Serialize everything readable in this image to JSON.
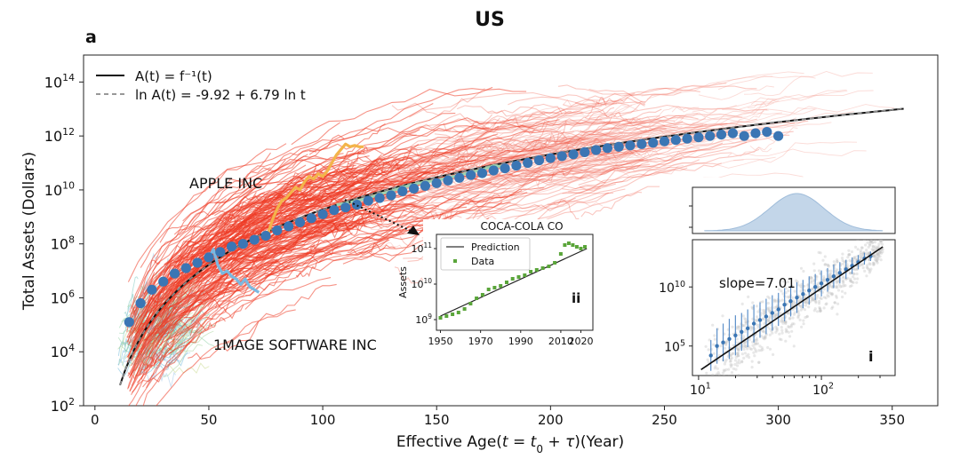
{
  "figure": {
    "title": "US",
    "panel_label": "a"
  },
  "chart_data": [
    {
      "type": "scatter",
      "xlabel": "Effective Age(t = t₀ + τ)(Year)",
      "ylabel": "Total Assets (Dollars)",
      "xlim": [
        -5,
        370
      ],
      "ylim_log10": [
        2,
        15
      ],
      "y_scale": "log",
      "x_ticks": [
        0,
        50,
        100,
        150,
        200,
        250,
        300,
        350
      ],
      "x_tick_labels": [
        "0",
        "50",
        "100",
        "150",
        "200",
        "250",
        "300",
        "350"
      ],
      "y_ticks_log10": [
        2,
        4,
        6,
        8,
        10,
        12,
        14
      ],
      "y_tick_labels": [
        "10",
        "10",
        "10",
        "10",
        "10",
        "10",
        "10"
      ],
      "y_tick_exponents": [
        "2",
        "4",
        "6",
        "8",
        "10",
        "12",
        "14"
      ],
      "legend": [
        {
          "label": "A(t)  = f⁻¹(t)",
          "style": "solid",
          "color": "#111111"
        },
        {
          "label": "ln A(t) = -9.92 + 6.79 ln t",
          "style": "dashed",
          "color": "#777777"
        }
      ],
      "legend_position": "top-left",
      "annotations": [
        {
          "text": "APPLE INC",
          "color": "#222222"
        },
        {
          "text": "1MAGE SOFTWARE INC",
          "color": "#222222"
        }
      ],
      "fit_line": {
        "formula": "ln A(t) = -9.92 + 6.79 ln t",
        "x_range": [
          11,
          355
        ]
      },
      "series": [
        {
          "kind": "binned-average",
          "color": "#3b76b4",
          "x": [
            15,
            20,
            25,
            30,
            35,
            40,
            45,
            50,
            55,
            60,
            65,
            70,
            75,
            80,
            85,
            90,
            95,
            100,
            105,
            110,
            115,
            120,
            125,
            130,
            135,
            140,
            145,
            150,
            155,
            160,
            165,
            170,
            175,
            180,
            185,
            190,
            195,
            200,
            205,
            210,
            215,
            220,
            225,
            230,
            235,
            240,
            245,
            250,
            255,
            260,
            265,
            270,
            275,
            280,
            285,
            290,
            295,
            300
          ],
          "log10y": [
            5.1,
            5.8,
            6.3,
            6.6,
            6.9,
            7.1,
            7.3,
            7.5,
            7.7,
            7.9,
            8.0,
            8.15,
            8.3,
            8.5,
            8.65,
            8.8,
            8.95,
            9.1,
            9.25,
            9.35,
            9.45,
            9.6,
            9.7,
            9.8,
            9.95,
            10.05,
            10.15,
            10.25,
            10.35,
            10.45,
            10.55,
            10.62,
            10.72,
            10.8,
            10.9,
            11.0,
            11.1,
            11.18,
            11.25,
            11.32,
            11.4,
            11.48,
            11.55,
            11.6,
            11.65,
            11.7,
            11.75,
            11.8,
            11.85,
            11.9,
            11.95,
            12.0,
            12.05,
            12.1,
            12.0,
            12.1,
            12.15,
            12.0
          ]
        },
        {
          "name": "APPLE INC",
          "kind": "company-trajectory",
          "color": "#f3b44a",
          "x": [
            76,
            78,
            80,
            82,
            84,
            86,
            88,
            90,
            92,
            94,
            96,
            98,
            100,
            102,
            104,
            106,
            108,
            110,
            112,
            114,
            116,
            118
          ],
          "log10y": [
            8.4,
            8.9,
            9.3,
            9.6,
            9.7,
            9.9,
            10.1,
            10.0,
            10.3,
            10.5,
            10.4,
            10.6,
            10.5,
            10.7,
            11.0,
            11.3,
            11.5,
            11.7,
            11.6,
            11.65,
            11.6,
            11.6
          ]
        },
        {
          "name": "1MAGE SOFTWARE INC",
          "kind": "company-trajectory",
          "color": "#7ab8e0",
          "x": [
            50,
            52,
            54,
            56,
            58,
            60,
            62,
            64,
            66,
            68,
            70,
            72
          ],
          "log10y": [
            7.5,
            7.8,
            7.2,
            6.9,
            7.0,
            6.8,
            6.7,
            6.5,
            6.7,
            6.4,
            6.3,
            6.2
          ]
        },
        {
          "name": "COCA-COLA CO",
          "kind": "company-trajectory",
          "color": "#9ed3b0",
          "x": [
            106,
            110,
            115,
            120,
            125,
            130,
            135,
            140,
            145,
            150,
            155,
            160,
            165,
            170,
            175,
            180
          ],
          "log10y": [
            9.45,
            9.5,
            9.6,
            9.7,
            9.85,
            9.95,
            10.1,
            10.2,
            10.3,
            10.35,
            10.45,
            10.55,
            10.65,
            10.75,
            10.9,
            10.85
          ]
        }
      ]
    },
    {
      "type": "scatter",
      "panel": "ii",
      "title": "COCA-COLA CO",
      "ylabel": "Assets",
      "y_scale": "log",
      "xlim": [
        1948,
        2026
      ],
      "ylim_log10": [
        8.7,
        11.4
      ],
      "x_ticks": [
        1950,
        1970,
        1990,
        2010,
        2020
      ],
      "x_tick_labels": [
        "1950",
        "1970",
        "1990",
        "2010",
        "2020"
      ],
      "y_ticks_log10": [
        9,
        10,
        11
      ],
      "y_tick_labels": [
        "10",
        "10",
        "10"
      ],
      "y_tick_exponents": [
        "9",
        "10",
        "11"
      ],
      "legend": [
        {
          "label": "Prediction",
          "style": "line",
          "color": "#333333"
        },
        {
          "label": "Data",
          "style": "square",
          "color": "#5aa53a"
        }
      ],
      "prediction": {
        "x": [
          1950,
          2023
        ],
        "log10y": [
          9.1,
          11.0
        ]
      },
      "data": {
        "x": [
          1950,
          1953,
          1956,
          1959,
          1962,
          1965,
          1968,
          1971,
          1974,
          1977,
          1980,
          1983,
          1986,
          1989,
          1992,
          1995,
          1998,
          2001,
          2004,
          2007,
          2010,
          2012,
          2014,
          2016,
          2018,
          2020,
          2022
        ],
        "log10y": [
          9.05,
          9.1,
          9.15,
          9.2,
          9.3,
          9.45,
          9.6,
          9.7,
          9.85,
          9.9,
          9.95,
          10.05,
          10.15,
          10.2,
          10.25,
          10.35,
          10.4,
          10.45,
          10.5,
          10.6,
          10.85,
          11.1,
          11.15,
          11.1,
          11.05,
          11.0,
          11.05
        ]
      }
    },
    {
      "type": "area",
      "panel": "i-top",
      "curve": "gaussian-density",
      "color": "#b9d0e6",
      "center_log10x": 1.8,
      "spread_log10x": 0.22
    },
    {
      "type": "scatter",
      "panel": "i",
      "annotation": "slope=7.01",
      "x_scale": "log",
      "y_scale": "log",
      "xlim_log10": [
        0.95,
        2.6
      ],
      "ylim_log10": [
        2.5,
        14
      ],
      "x_ticks_log10": [
        1,
        2
      ],
      "x_tick_labels": [
        "10",
        "10"
      ],
      "x_tick_exponents": [
        "1",
        "2"
      ],
      "y_ticks_log10": [
        5,
        10
      ],
      "y_tick_labels": [
        "10",
        "10"
      ],
      "y_tick_exponents": [
        "5",
        "10"
      ],
      "fit_line": {
        "log10x": [
          1.02,
          2.5
        ],
        "log10y": [
          3.0,
          13.4
        ]
      },
      "binned": {
        "log10x": [
          1.1,
          1.15,
          1.2,
          1.25,
          1.3,
          1.35,
          1.4,
          1.45,
          1.5,
          1.55,
          1.6,
          1.65,
          1.7,
          1.75,
          1.8,
          1.85,
          1.9,
          1.95,
          2.0,
          2.05,
          2.1,
          2.15,
          2.2,
          2.25,
          2.3,
          2.35,
          2.4
        ],
        "log10y": [
          4.2,
          5.0,
          5.3,
          5.6,
          5.9,
          6.2,
          6.5,
          6.9,
          7.2,
          7.5,
          7.8,
          8.1,
          8.5,
          8.8,
          9.1,
          9.4,
          9.7,
          10.0,
          10.3,
          10.6,
          10.9,
          11.2,
          11.5,
          11.8,
          12.1,
          12.4,
          12.6
        ],
        "err": [
          1.3,
          1.5,
          1.6,
          1.7,
          1.7,
          1.6,
          1.6,
          1.6,
          1.5,
          1.5,
          1.5,
          1.4,
          1.4,
          1.3,
          1.3,
          1.2,
          1.2,
          1.1,
          1.1,
          1.0,
          1.0,
          0.9,
          0.8,
          0.7,
          0.6,
          0.5,
          0.4
        ]
      }
    }
  ]
}
